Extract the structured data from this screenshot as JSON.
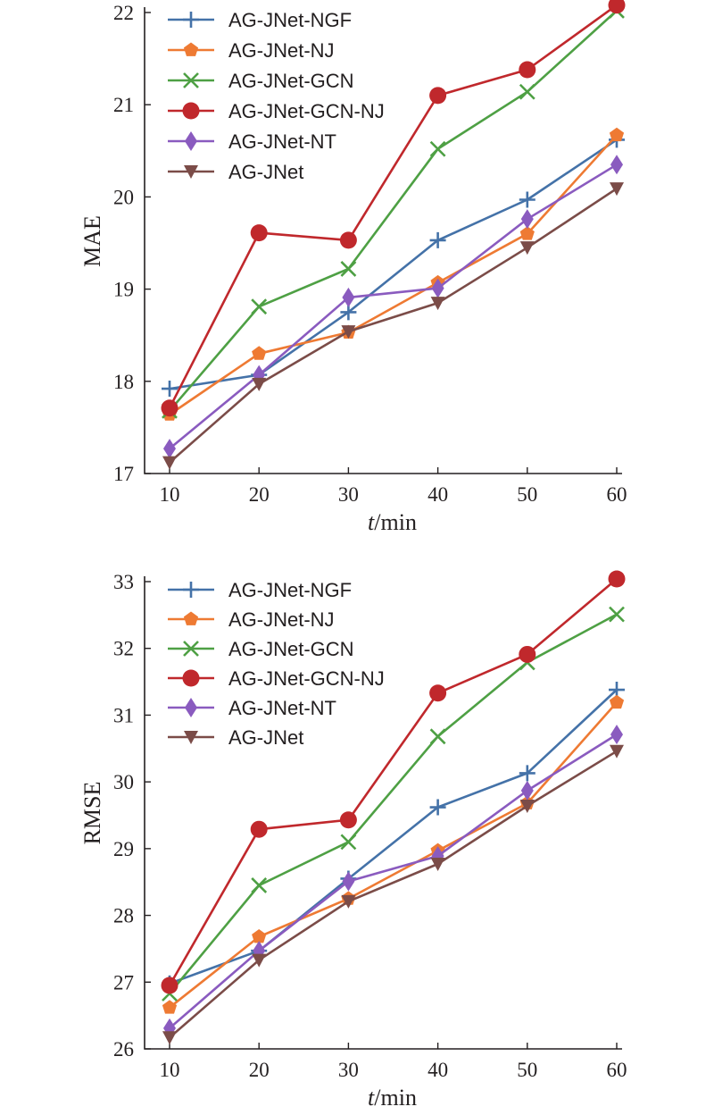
{
  "chart_data": [
    {
      "type": "line",
      "x": [
        10,
        20,
        30,
        40,
        50,
        60
      ],
      "xlabel_italic": "t",
      "xlabel_unit": "/min",
      "ylabel": "MAE",
      "xlim": [
        10,
        60
      ],
      "ylim": [
        17,
        22
      ],
      "yticks": [
        17,
        18,
        19,
        20,
        21,
        22
      ],
      "xticks": [
        10,
        20,
        30,
        40,
        50,
        60
      ],
      "grid": false,
      "legend_position": "top-left",
      "series": [
        {
          "name": "AG-JNet-NGF",
          "marker": "plus",
          "color": "#4472a8",
          "values": [
            17.92,
            18.07,
            18.75,
            19.53,
            19.97,
            20.62
          ]
        },
        {
          "name": "AG-JNet-NJ",
          "marker": "pentagon",
          "color": "#ee7a33",
          "values": [
            17.64,
            18.3,
            18.53,
            19.07,
            19.6,
            20.67
          ]
        },
        {
          "name": "AG-JNet-GCN",
          "marker": "x",
          "color": "#4ea044",
          "values": [
            17.68,
            18.81,
            19.22,
            20.52,
            21.14,
            22.02
          ]
        },
        {
          "name": "AG-JNet-GCN-NJ",
          "marker": "circle",
          "color": "#c0282c",
          "values": [
            17.71,
            19.61,
            19.53,
            21.1,
            21.38,
            22.08
          ]
        },
        {
          "name": "AG-JNet-NT",
          "marker": "diamond",
          "color": "#8a5bbf",
          "values": [
            17.27,
            18.07,
            18.91,
            19.01,
            19.76,
            20.35
          ]
        },
        {
          "name": "AG-JNet",
          "marker": "triangle-down",
          "color": "#7b4c48",
          "values": [
            17.12,
            17.97,
            18.54,
            18.85,
            19.45,
            20.09
          ]
        }
      ]
    },
    {
      "type": "line",
      "x": [
        10,
        20,
        30,
        40,
        50,
        60
      ],
      "xlabel_italic": "t",
      "xlabel_unit": "/min",
      "ylabel": "RMSE",
      "xlim": [
        10,
        60
      ],
      "ylim": [
        26,
        33
      ],
      "yticks": [
        26,
        27,
        28,
        29,
        30,
        31,
        32,
        33
      ],
      "xticks": [
        10,
        20,
        30,
        40,
        50,
        60
      ],
      "grid": false,
      "legend_position": "top-left",
      "series": [
        {
          "name": "AG-JNet-NGF",
          "marker": "plus",
          "color": "#4472a8",
          "values": [
            26.98,
            27.47,
            28.55,
            29.62,
            30.13,
            31.38
          ]
        },
        {
          "name": "AG-JNet-NJ",
          "marker": "pentagon",
          "color": "#ee7a33",
          "values": [
            26.62,
            27.68,
            28.25,
            28.97,
            29.68,
            31.19
          ]
        },
        {
          "name": "AG-JNet-GCN",
          "marker": "x",
          "color": "#4ea044",
          "values": [
            26.83,
            28.45,
            29.1,
            30.68,
            31.79,
            32.51
          ]
        },
        {
          "name": "AG-JNet-GCN-NJ",
          "marker": "circle",
          "color": "#c0282c",
          "values": [
            26.95,
            29.29,
            29.43,
            31.33,
            31.91,
            33.04
          ]
        },
        {
          "name": "AG-JNet-NT",
          "marker": "diamond",
          "color": "#8a5bbf",
          "values": [
            26.31,
            27.47,
            28.51,
            28.89,
            29.87,
            30.71
          ]
        },
        {
          "name": "AG-JNet",
          "marker": "triangle-down",
          "color": "#7b4c48",
          "values": [
            26.17,
            27.33,
            28.21,
            28.77,
            29.64,
            30.46
          ]
        }
      ]
    }
  ]
}
